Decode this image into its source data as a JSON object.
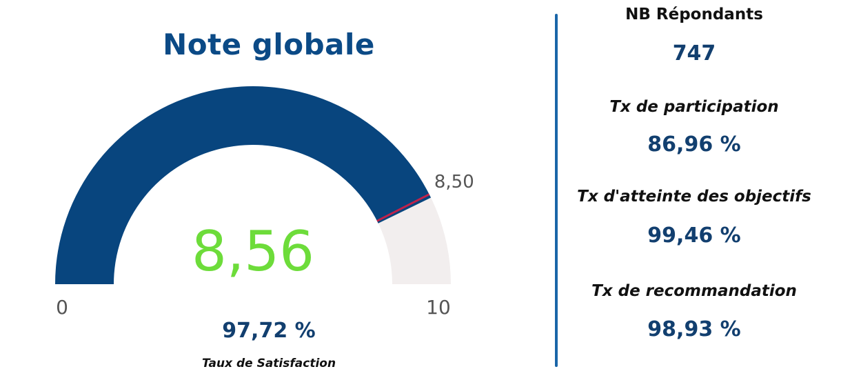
{
  "gauge": {
    "title": "Note globale",
    "min_label": "0",
    "max_label": "10",
    "value_label": "8,56",
    "target_label": "8,50",
    "satisfaction_value": "97,72 %",
    "satisfaction_label": "Taux de Satisfaction"
  },
  "kpis": [
    {
      "label": "NB Répondants",
      "value": "747"
    },
    {
      "label": "Tx de participation",
      "value": "86,96 %"
    },
    {
      "label": "Tx d'atteinte des objectifs",
      "value": "99,46 %"
    },
    {
      "label": "Tx de recommandation",
      "value": "98,93 %"
    }
  ],
  "colors": {
    "fill": "#08457e",
    "track": "#f2eeee",
    "target": "#c0224a",
    "value_text": "#6ddc3a",
    "title": "#0b4a86",
    "kpi_value": "#123f6f",
    "divider": "#1a66a8"
  },
  "chart_data": {
    "type": "gauge",
    "min": 0,
    "max": 10,
    "value": 8.56,
    "target": 8.5,
    "title": "Note globale"
  }
}
